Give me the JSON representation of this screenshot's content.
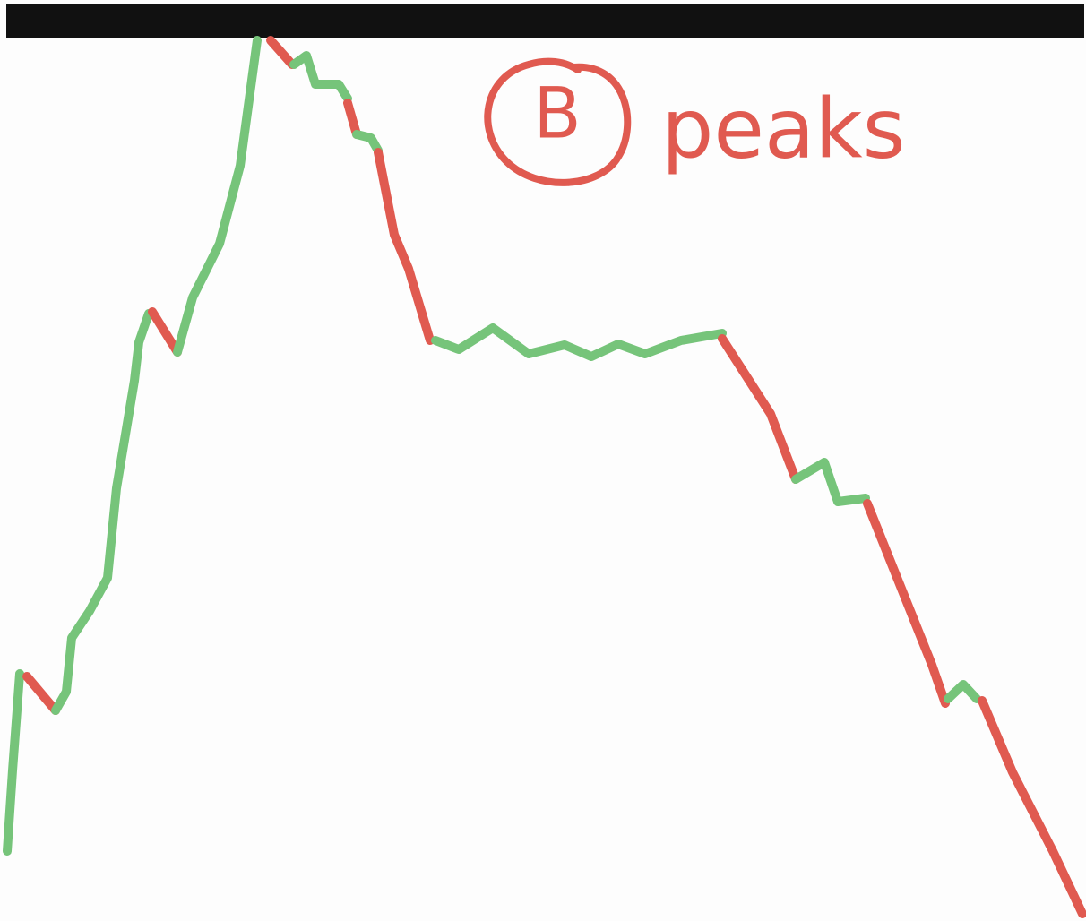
{
  "annotation": {
    "label": "B",
    "text": "peaks"
  }
}
